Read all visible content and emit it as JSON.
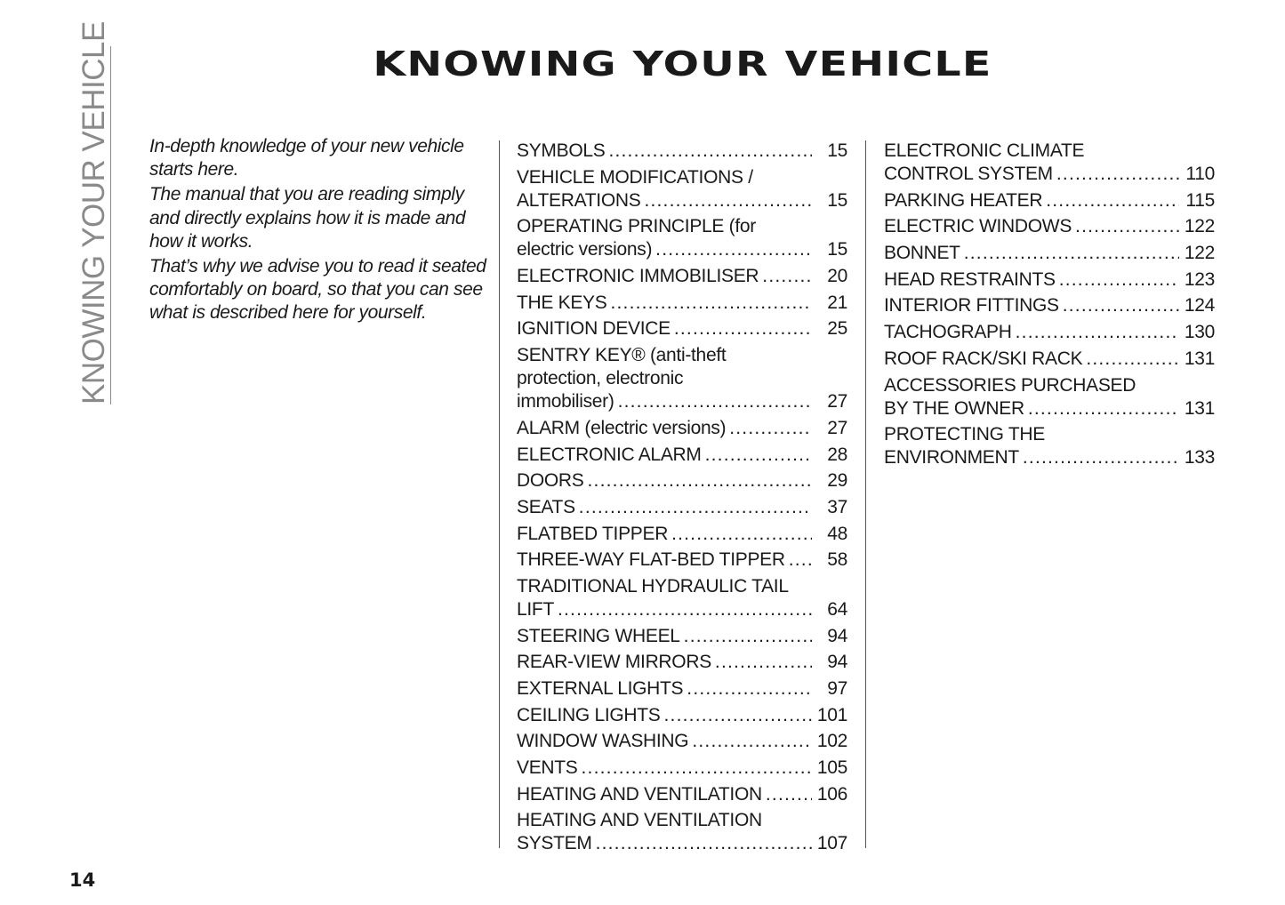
{
  "side_label": "KNOWING YOUR VEHICLE",
  "title": "KNOWING YOUR VEHICLE",
  "intro": [
    "In-depth knowledge of your new vehicle starts here.",
    "The manual that you are reading simply and directly explains how it is made and how it works.",
    "That’s why we advise you to read it seated comfortably on board, so that you can see what is described here for yourself."
  ],
  "toc_col1": [
    {
      "lines": [
        "SYMBOLS"
      ],
      "page": "15"
    },
    {
      "lines": [
        "VEHICLE MODIFICATIONS /",
        "ALTERATIONS"
      ],
      "page": "15"
    },
    {
      "lines": [
        "OPERATING PRINCIPLE (for",
        "electric versions)"
      ],
      "page": "15"
    },
    {
      "lines": [
        "ELECTRONIC IMMOBILISER"
      ],
      "page": "20"
    },
    {
      "lines": [
        "THE KEYS"
      ],
      "page": "21"
    },
    {
      "lines": [
        "IGNITION DEVICE"
      ],
      "page": "25"
    },
    {
      "lines": [
        "SENTRY KEY® (anti-theft",
        "protection,  electronic",
        "immobiliser)"
      ],
      "page": "27"
    },
    {
      "lines": [
        "ALARM (electric versions)"
      ],
      "page": "27"
    },
    {
      "lines": [
        "ELECTRONIC ALARM"
      ],
      "page": "28"
    },
    {
      "lines": [
        "DOORS"
      ],
      "page": "29"
    },
    {
      "lines": [
        "SEATS"
      ],
      "page": "37"
    },
    {
      "lines": [
        "FLATBED TIPPER"
      ],
      "page": "48"
    },
    {
      "lines": [
        "THREE-WAY FLAT-BED TIPPER"
      ],
      "page": "58"
    },
    {
      "lines": [
        "TRADITIONAL HYDRAULIC TAIL",
        "LIFT"
      ],
      "page": "64"
    },
    {
      "lines": [
        "STEERING WHEEL"
      ],
      "page": "94"
    },
    {
      "lines": [
        "REAR-VIEW MIRRORS"
      ],
      "page": "94"
    },
    {
      "lines": [
        "EXTERNAL LIGHTS"
      ],
      "page": "97"
    },
    {
      "lines": [
        "CEILING LIGHTS"
      ],
      "page": "101"
    },
    {
      "lines": [
        "WINDOW WASHING"
      ],
      "page": "102"
    },
    {
      "lines": [
        "VENTS"
      ],
      "page": "105"
    },
    {
      "lines": [
        "HEATING AND VENTILATION"
      ],
      "page": "106"
    },
    {
      "lines": [
        "HEATING AND VENTILATION",
        "SYSTEM"
      ],
      "page": "107"
    }
  ],
  "toc_col2": [
    {
      "lines": [
        "ELECTRONIC CLIMATE",
        "CONTROL SYSTEM"
      ],
      "page": "110"
    },
    {
      "lines": [
        "PARKING HEATER"
      ],
      "page": "115"
    },
    {
      "lines": [
        "ELECTRIC WINDOWS"
      ],
      "page": "122"
    },
    {
      "lines": [
        "BONNET"
      ],
      "page": "122"
    },
    {
      "lines": [
        "HEAD RESTRAINTS"
      ],
      "page": "123"
    },
    {
      "lines": [
        "INTERIOR FITTINGS"
      ],
      "page": "124"
    },
    {
      "lines": [
        "TACHOGRAPH"
      ],
      "page": "130"
    },
    {
      "lines": [
        "ROOF RACK/SKI RACK"
      ],
      "page": "131"
    },
    {
      "lines": [
        "ACCESSORIES PURCHASED",
        "BY THE OWNER"
      ],
      "page": "131"
    },
    {
      "lines": [
        "PROTECTING  THE",
        "ENVIRONMENT"
      ],
      "page": "133"
    }
  ],
  "page_number": "14"
}
